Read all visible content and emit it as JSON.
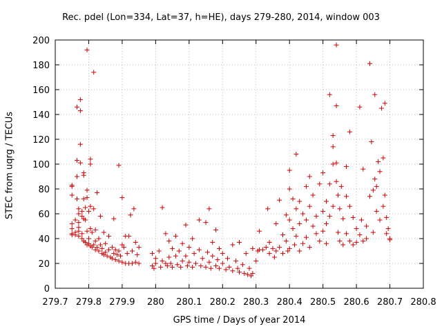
{
  "chart_data": {
    "type": "scatter",
    "title": "Rec. pdel (Lon=334, Lat=37, h=HE), days 279-280, 2014, window 003",
    "xlabel": "GPS time / Days of year 2014",
    "ylabel": "STEC from uqrg / TECUs",
    "xlim": [
      279.7,
      280.8
    ],
    "ylim": [
      0,
      200
    ],
    "xticks": [
      "279.7",
      "279.8",
      "279.9",
      "280",
      "280.1",
      "280.2",
      "280.3",
      "280.4",
      "280.5",
      "280.6",
      "280.7",
      "280.8"
    ],
    "yticks": [
      "0",
      "20",
      "40",
      "60",
      "80",
      "100",
      "120",
      "140",
      "160",
      "180",
      "200"
    ],
    "grid": true,
    "marker": "+",
    "color": "#cc0000",
    "points": [
      [
        279.75,
        75
      ],
      [
        279.75,
        82
      ],
      [
        279.75,
        83
      ],
      [
        279.75,
        52
      ],
      [
        279.75,
        48
      ],
      [
        279.75,
        44
      ],
      [
        279.75,
        43
      ],
      [
        279.76,
        55
      ],
      [
        279.76,
        45
      ],
      [
        279.76,
        43
      ],
      [
        279.765,
        146
      ],
      [
        279.765,
        103
      ],
      [
        279.765,
        90
      ],
      [
        279.765,
        72
      ],
      [
        279.77,
        64
      ],
      [
        279.77,
        60
      ],
      [
        279.77,
        53
      ],
      [
        279.77,
        49
      ],
      [
        279.77,
        46
      ],
      [
        279.77,
        42
      ],
      [
        279.775,
        152
      ],
      [
        279.775,
        143
      ],
      [
        279.775,
        116
      ],
      [
        279.775,
        101
      ],
      [
        279.78,
        62
      ],
      [
        279.78,
        58
      ],
      [
        279.78,
        44
      ],
      [
        279.78,
        40
      ],
      [
        279.785,
        93
      ],
      [
        279.785,
        91
      ],
      [
        279.785,
        72
      ],
      [
        279.785,
        56
      ],
      [
        279.785,
        38
      ],
      [
        279.79,
        65
      ],
      [
        279.79,
        55
      ],
      [
        279.79,
        37
      ],
      [
        279.795,
        192
      ],
      [
        279.795,
        79
      ],
      [
        279.795,
        73
      ],
      [
        279.795,
        46
      ],
      [
        279.795,
        35
      ],
      [
        279.8,
        62
      ],
      [
        279.8,
        40
      ],
      [
        279.8,
        36
      ],
      [
        279.805,
        104
      ],
      [
        279.805,
        100
      ],
      [
        279.805,
        66
      ],
      [
        279.805,
        48
      ],
      [
        279.805,
        34
      ],
      [
        279.81,
        45
      ],
      [
        279.81,
        33
      ],
      [
        279.815,
        174
      ],
      [
        279.815,
        64
      ],
      [
        279.815,
        35
      ],
      [
        279.82,
        47
      ],
      [
        279.82,
        38
      ],
      [
        279.82,
        31
      ],
      [
        279.825,
        77
      ],
      [
        279.825,
        33
      ],
      [
        279.83,
        40
      ],
      [
        279.83,
        30
      ],
      [
        279.835,
        58
      ],
      [
        279.835,
        35
      ],
      [
        279.84,
        32
      ],
      [
        279.84,
        28
      ],
      [
        279.845,
        45
      ],
      [
        279.845,
        27
      ],
      [
        279.85,
        36
      ],
      [
        279.85,
        29
      ],
      [
        279.855,
        26
      ],
      [
        279.86,
        42
      ],
      [
        279.86,
        31
      ],
      [
        279.865,
        25
      ],
      [
        279.87,
        33
      ],
      [
        279.87,
        24
      ],
      [
        279.875,
        56
      ],
      [
        279.875,
        28
      ],
      [
        279.88,
        31
      ],
      [
        279.88,
        23
      ],
      [
        279.885,
        27
      ],
      [
        279.89,
        99
      ],
      [
        279.89,
        30
      ],
      [
        279.89,
        22
      ],
      [
        279.895,
        26
      ],
      [
        279.9,
        73
      ],
      [
        279.9,
        35
      ],
      [
        279.9,
        21
      ],
      [
        279.905,
        33
      ],
      [
        279.91,
        42
      ],
      [
        279.91,
        20
      ],
      [
        279.915,
        28
      ],
      [
        279.92,
        42
      ],
      [
        279.92,
        20
      ],
      [
        279.925,
        59
      ],
      [
        279.93,
        30
      ],
      [
        279.93,
        20
      ],
      [
        279.935,
        64
      ],
      [
        279.94,
        37
      ],
      [
        279.94,
        21
      ],
      [
        279.945,
        27
      ],
      [
        279.95,
        33
      ],
      [
        279.95,
        20
      ],
      [
        279.99,
        28
      ],
      [
        279.99,
        18
      ],
      [
        279.995,
        16
      ],
      [
        280.0,
        20
      ],
      [
        280.0,
        24
      ],
      [
        280.01,
        30
      ],
      [
        280.015,
        17
      ],
      [
        280.02,
        65
      ],
      [
        280.02,
        22
      ],
      [
        280.03,
        44
      ],
      [
        280.03,
        20
      ],
      [
        280.035,
        18
      ],
      [
        280.04,
        38
      ],
      [
        280.04,
        25
      ],
      [
        280.045,
        20
      ],
      [
        280.05,
        32
      ],
      [
        280.05,
        17
      ],
      [
        280.06,
        42
      ],
      [
        280.06,
        26
      ],
      [
        280.065,
        19
      ],
      [
        280.07,
        30
      ],
      [
        280.075,
        17
      ],
      [
        280.08,
        36
      ],
      [
        280.08,
        22
      ],
      [
        280.09,
        51
      ],
      [
        280.09,
        26
      ],
      [
        280.095,
        18
      ],
      [
        280.1,
        33
      ],
      [
        280.1,
        21
      ],
      [
        280.11,
        40
      ],
      [
        280.11,
        17
      ],
      [
        280.115,
        28
      ],
      [
        280.12,
        20
      ],
      [
        280.13,
        55
      ],
      [
        280.13,
        31
      ],
      [
        280.135,
        18
      ],
      [
        280.14,
        24
      ],
      [
        280.15,
        53
      ],
      [
        280.15,
        17
      ],
      [
        280.155,
        29
      ],
      [
        280.16,
        64
      ],
      [
        280.16,
        21
      ],
      [
        280.165,
        16
      ],
      [
        280.17,
        37
      ],
      [
        280.17,
        26
      ],
      [
        280.18,
        47
      ],
      [
        280.18,
        18
      ],
      [
        280.185,
        23
      ],
      [
        280.19,
        32
      ],
      [
        280.19,
        16
      ],
      [
        280.2,
        28
      ],
      [
        280.2,
        20
      ],
      [
        280.21,
        15
      ],
      [
        280.215,
        24
      ],
      [
        280.22,
        17
      ],
      [
        280.23,
        35
      ],
      [
        280.23,
        14
      ],
      [
        280.24,
        22
      ],
      [
        280.245,
        16
      ],
      [
        280.25,
        37
      ],
      [
        280.25,
        13
      ],
      [
        280.26,
        19
      ],
      [
        280.265,
        12
      ],
      [
        280.27,
        28
      ],
      [
        280.275,
        11
      ],
      [
        280.28,
        16
      ],
      [
        280.285,
        10
      ],
      [
        280.29,
        32
      ],
      [
        280.29,
        12
      ],
      [
        280.3,
        22
      ],
      [
        280.305,
        30
      ],
      [
        280.31,
        46
      ],
      [
        280.31,
        31
      ],
      [
        280.32,
        31
      ],
      [
        280.33,
        33
      ],
      [
        280.335,
        64
      ],
      [
        280.34,
        37
      ],
      [
        280.34,
        28
      ],
      [
        280.35,
        32
      ],
      [
        280.355,
        25
      ],
      [
        280.36,
        52
      ],
      [
        280.36,
        30
      ],
      [
        280.37,
        71
      ],
      [
        280.37,
        33
      ],
      [
        280.38,
        43
      ],
      [
        280.38,
        28
      ],
      [
        280.39,
        59
      ],
      [
        280.39,
        38
      ],
      [
        280.395,
        30
      ],
      [
        280.4,
        95
      ],
      [
        280.4,
        80
      ],
      [
        280.4,
        55
      ],
      [
        280.4,
        32
      ],
      [
        280.41,
        72
      ],
      [
        280.41,
        48
      ],
      [
        280.415,
        35
      ],
      [
        280.42,
        108
      ],
      [
        280.42,
        64
      ],
      [
        280.42,
        42
      ],
      [
        280.43,
        70
      ],
      [
        280.43,
        52
      ],
      [
        280.43,
        30
      ],
      [
        280.44,
        60
      ],
      [
        280.44,
        36
      ],
      [
        280.45,
        82
      ],
      [
        280.45,
        55
      ],
      [
        280.45,
        41
      ],
      [
        280.46,
        90
      ],
      [
        280.46,
        66
      ],
      [
        280.46,
        33
      ],
      [
        280.47,
        75
      ],
      [
        280.47,
        50
      ],
      [
        280.48,
        58
      ],
      [
        280.48,
        44
      ],
      [
        280.49,
        84
      ],
      [
        280.49,
        38
      ],
      [
        280.5,
        93
      ],
      [
        280.5,
        62
      ],
      [
        280.5,
        46
      ],
      [
        280.51,
        70
      ],
      [
        280.51,
        52
      ],
      [
        280.51,
        36
      ],
      [
        280.52,
        156
      ],
      [
        280.52,
        84
      ],
      [
        280.52,
        58
      ],
      [
        280.53,
        123
      ],
      [
        280.53,
        114
      ],
      [
        280.53,
        100
      ],
      [
        280.53,
        66
      ],
      [
        280.54,
        196
      ],
      [
        280.54,
        147
      ],
      [
        280.54,
        101
      ],
      [
        280.54,
        86
      ],
      [
        280.545,
        75
      ],
      [
        280.545,
        45
      ],
      [
        280.55,
        64
      ],
      [
        280.55,
        38
      ],
      [
        280.555,
        82
      ],
      [
        280.56,
        56
      ],
      [
        280.56,
        35
      ],
      [
        280.57,
        98
      ],
      [
        280.57,
        74
      ],
      [
        280.57,
        44
      ],
      [
        280.58,
        126
      ],
      [
        280.58,
        66
      ],
      [
        280.58,
        38
      ],
      [
        280.59,
        57
      ],
      [
        280.59,
        35
      ],
      [
        280.6,
        48
      ],
      [
        280.6,
        37
      ],
      [
        280.61,
        146
      ],
      [
        280.61,
        43
      ],
      [
        280.615,
        55
      ],
      [
        280.62,
        96
      ],
      [
        280.62,
        38
      ],
      [
        280.63,
        50
      ],
      [
        280.63,
        40
      ],
      [
        280.64,
        181
      ],
      [
        280.64,
        74
      ],
      [
        280.645,
        118
      ],
      [
        280.65,
        79
      ],
      [
        280.65,
        45
      ],
      [
        280.655,
        156
      ],
      [
        280.655,
        88
      ],
      [
        280.66,
        82
      ],
      [
        280.66,
        62
      ],
      [
        280.665,
        102
      ],
      [
        280.67,
        94
      ],
      [
        280.67,
        55
      ],
      [
        280.675,
        145
      ],
      [
        280.68,
        105
      ],
      [
        280.68,
        66
      ],
      [
        280.685,
        149
      ],
      [
        280.685,
        75
      ],
      [
        280.69,
        57
      ],
      [
        280.69,
        44
      ],
      [
        280.695,
        48
      ],
      [
        280.7,
        40
      ],
      [
        280.7,
        39
      ]
    ]
  }
}
